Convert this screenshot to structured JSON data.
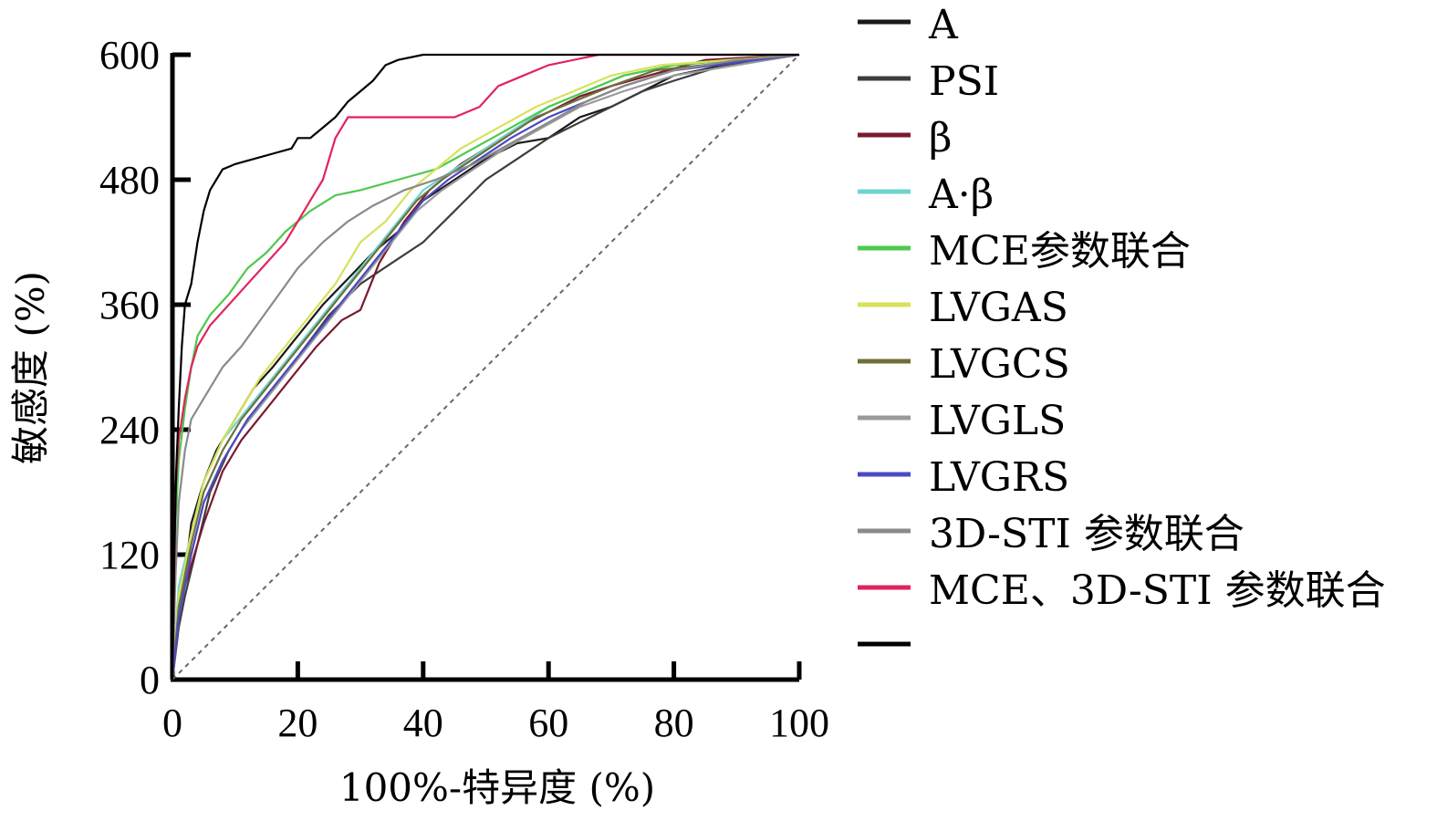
{
  "chart_data": {
    "type": "line",
    "title": "",
    "xlabel": "100%-特异度 (%)",
    "ylabel": "敏感度 (%)",
    "xlim": [
      0,
      100
    ],
    "ylim": [
      0,
      600
    ],
    "x_ticks": [
      0,
      20,
      40,
      60,
      80,
      100
    ],
    "y_ticks": [
      0,
      120,
      240,
      360,
      480,
      600
    ],
    "grid": false,
    "legend_position": "right",
    "reference_line": {
      "from": [
        0,
        0
      ],
      "to": [
        100,
        600
      ],
      "style": "dashed",
      "color": "#666666"
    },
    "series": [
      {
        "name": "A",
        "color": "#1a1a1a",
        "points": [
          [
            0,
            0
          ],
          [
            1,
            60
          ],
          [
            2,
            100
          ],
          [
            3,
            150
          ],
          [
            5,
            190
          ],
          [
            7,
            220
          ],
          [
            10,
            250
          ],
          [
            13,
            280
          ],
          [
            16,
            300
          ],
          [
            20,
            330
          ],
          [
            24,
            360
          ],
          [
            28,
            385
          ],
          [
            32,
            410
          ],
          [
            36,
            430
          ],
          [
            40,
            460
          ],
          [
            45,
            480
          ],
          [
            50,
            500
          ],
          [
            55,
            515
          ],
          [
            60,
            520
          ],
          [
            65,
            540
          ],
          [
            70,
            550
          ],
          [
            75,
            565
          ],
          [
            80,
            580
          ],
          [
            88,
            590
          ],
          [
            100,
            600
          ]
        ]
      },
      {
        "name": "PSI",
        "color": "#3d3d3d",
        "points": [
          [
            0,
            0
          ],
          [
            1,
            50
          ],
          [
            2,
            80
          ],
          [
            4,
            130
          ],
          [
            6,
            180
          ],
          [
            9,
            220
          ],
          [
            12,
            250
          ],
          [
            16,
            280
          ],
          [
            20,
            310
          ],
          [
            25,
            350
          ],
          [
            30,
            380
          ],
          [
            35,
            400
          ],
          [
            40,
            420
          ],
          [
            45,
            450
          ],
          [
            50,
            480
          ],
          [
            55,
            500
          ],
          [
            60,
            520
          ],
          [
            65,
            535
          ],
          [
            70,
            550
          ],
          [
            75,
            565
          ],
          [
            80,
            575
          ],
          [
            88,
            590
          ],
          [
            100,
            600
          ]
        ]
      },
      {
        "name": "β",
        "color": "#7a1a2e",
        "points": [
          [
            0,
            0
          ],
          [
            1,
            70
          ],
          [
            3,
            110
          ],
          [
            5,
            150
          ],
          [
            8,
            200
          ],
          [
            11,
            230
          ],
          [
            15,
            260
          ],
          [
            19,
            290
          ],
          [
            23,
            320
          ],
          [
            27,
            345
          ],
          [
            30,
            355
          ],
          [
            33,
            400
          ],
          [
            37,
            440
          ],
          [
            41,
            470
          ],
          [
            46,
            495
          ],
          [
            50,
            510
          ],
          [
            55,
            530
          ],
          [
            60,
            545
          ],
          [
            65,
            560
          ],
          [
            70,
            570
          ],
          [
            76,
            580
          ],
          [
            85,
            595
          ],
          [
            100,
            600
          ]
        ]
      },
      {
        "name": "A·β",
        "color": "#6fd4d0",
        "points": [
          [
            0,
            0
          ],
          [
            1,
            90
          ],
          [
            3,
            140
          ],
          [
            5,
            190
          ],
          [
            8,
            230
          ],
          [
            12,
            260
          ],
          [
            16,
            290
          ],
          [
            20,
            320
          ],
          [
            24,
            350
          ],
          [
            28,
            380
          ],
          [
            32,
            410
          ],
          [
            36,
            440
          ],
          [
            40,
            470
          ],
          [
            45,
            490
          ],
          [
            50,
            510
          ],
          [
            55,
            530
          ],
          [
            60,
            550
          ],
          [
            66,
            565
          ],
          [
            72,
            580
          ],
          [
            80,
            590
          ],
          [
            100,
            600
          ]
        ]
      },
      {
        "name": "MCE参数联合",
        "color": "#4ec94e",
        "points": [
          [
            0,
            0
          ],
          [
            0.5,
            150
          ],
          [
            1,
            210
          ],
          [
            2,
            260
          ],
          [
            3,
            300
          ],
          [
            4,
            330
          ],
          [
            6,
            350
          ],
          [
            9,
            370
          ],
          [
            12,
            395
          ],
          [
            15,
            410
          ],
          [
            18,
            430
          ],
          [
            22,
            450
          ],
          [
            26,
            465
          ],
          [
            30,
            470
          ],
          [
            36,
            480
          ],
          [
            42,
            490
          ],
          [
            48,
            510
          ],
          [
            54,
            530
          ],
          [
            60,
            550
          ],
          [
            66,
            565
          ],
          [
            72,
            580
          ],
          [
            80,
            590
          ],
          [
            100,
            600
          ]
        ]
      },
      {
        "name": "LVGAS",
        "color": "#d7e25a",
        "points": [
          [
            0,
            0
          ],
          [
            1,
            80
          ],
          [
            3,
            140
          ],
          [
            5,
            190
          ],
          [
            8,
            230
          ],
          [
            11,
            260
          ],
          [
            14,
            290
          ],
          [
            18,
            320
          ],
          [
            22,
            350
          ],
          [
            26,
            380
          ],
          [
            30,
            420
          ],
          [
            34,
            440
          ],
          [
            38,
            470
          ],
          [
            42,
            490
          ],
          [
            46,
            510
          ],
          [
            52,
            530
          ],
          [
            58,
            550
          ],
          [
            64,
            565
          ],
          [
            70,
            580
          ],
          [
            78,
            590
          ],
          [
            100,
            600
          ]
        ]
      },
      {
        "name": "LVGCS",
        "color": "#6f6f3a",
        "points": [
          [
            0,
            0
          ],
          [
            1,
            70
          ],
          [
            3,
            130
          ],
          [
            5,
            180
          ],
          [
            8,
            220
          ],
          [
            11,
            250
          ],
          [
            15,
            280
          ],
          [
            19,
            310
          ],
          [
            23,
            340
          ],
          [
            27,
            370
          ],
          [
            31,
            400
          ],
          [
            35,
            430
          ],
          [
            39,
            460
          ],
          [
            43,
            480
          ],
          [
            48,
            500
          ],
          [
            53,
            520
          ],
          [
            58,
            540
          ],
          [
            64,
            555
          ],
          [
            70,
            570
          ],
          [
            77,
            585
          ],
          [
            100,
            600
          ]
        ]
      },
      {
        "name": "LVGLS",
        "color": "#9a9a9a",
        "points": [
          [
            0,
            0
          ],
          [
            1,
            60
          ],
          [
            3,
            120
          ],
          [
            5,
            170
          ],
          [
            8,
            210
          ],
          [
            11,
            240
          ],
          [
            15,
            270
          ],
          [
            19,
            300
          ],
          [
            23,
            330
          ],
          [
            27,
            360
          ],
          [
            31,
            390
          ],
          [
            35,
            420
          ],
          [
            39,
            450
          ],
          [
            43,
            470
          ],
          [
            48,
            490
          ],
          [
            53,
            510
          ],
          [
            59,
            530
          ],
          [
            65,
            550
          ],
          [
            72,
            565
          ],
          [
            80,
            580
          ],
          [
            90,
            590
          ],
          [
            100,
            600
          ]
        ]
      },
      {
        "name": "LVGRS",
        "color": "#4a4ac4",
        "points": [
          [
            0,
            0
          ],
          [
            1,
            60
          ],
          [
            3,
            120
          ],
          [
            5,
            170
          ],
          [
            8,
            210
          ],
          [
            12,
            250
          ],
          [
            16,
            280
          ],
          [
            20,
            310
          ],
          [
            24,
            340
          ],
          [
            28,
            370
          ],
          [
            32,
            400
          ],
          [
            36,
            430
          ],
          [
            40,
            460
          ],
          [
            44,
            480
          ],
          [
            49,
            500
          ],
          [
            54,
            520
          ],
          [
            60,
            540
          ],
          [
            66,
            555
          ],
          [
            72,
            570
          ],
          [
            80,
            585
          ],
          [
            100,
            600
          ]
        ]
      },
      {
        "name": "3D-STI 参数联合",
        "color": "#8a8a8a",
        "points": [
          [
            0,
            0
          ],
          [
            0.5,
            100
          ],
          [
            1,
            170
          ],
          [
            2,
            220
          ],
          [
            3,
            250
          ],
          [
            5,
            270
          ],
          [
            8,
            300
          ],
          [
            11,
            320
          ],
          [
            14,
            345
          ],
          [
            17,
            370
          ],
          [
            20,
            395
          ],
          [
            24,
            420
          ],
          [
            28,
            440
          ],
          [
            32,
            455
          ],
          [
            37,
            470
          ],
          [
            42,
            480
          ],
          [
            48,
            495
          ],
          [
            54,
            515
          ],
          [
            60,
            535
          ],
          [
            66,
            555
          ],
          [
            72,
            570
          ],
          [
            80,
            585
          ],
          [
            90,
            595
          ],
          [
            100,
            600
          ]
        ]
      },
      {
        "name": "MCE、3D-STI 参数联合",
        "color": "#e0245e",
        "points": [
          [
            0,
            0
          ],
          [
            0.5,
            180
          ],
          [
            1,
            230
          ],
          [
            2,
            270
          ],
          [
            3,
            300
          ],
          [
            4,
            320
          ],
          [
            6,
            340
          ],
          [
            9,
            360
          ],
          [
            12,
            380
          ],
          [
            15,
            400
          ],
          [
            18,
            420
          ],
          [
            20,
            440
          ],
          [
            22,
            460
          ],
          [
            24,
            480
          ],
          [
            26,
            520
          ],
          [
            28,
            540
          ],
          [
            33,
            540
          ],
          [
            40,
            540
          ],
          [
            45,
            540
          ],
          [
            49,
            550
          ],
          [
            52,
            570
          ],
          [
            56,
            580
          ],
          [
            60,
            590
          ],
          [
            68,
            600
          ],
          [
            100,
            600
          ]
        ]
      },
      {
        "name": "",
        "color": "#000000",
        "points": [
          [
            0,
            0
          ],
          [
            0.3,
            120
          ],
          [
            0.6,
            200
          ],
          [
            1,
            260
          ],
          [
            1.5,
            320
          ],
          [
            2,
            360
          ],
          [
            3,
            380
          ],
          [
            4,
            420
          ],
          [
            5,
            450
          ],
          [
            6,
            470
          ],
          [
            7,
            480
          ],
          [
            8,
            490
          ],
          [
            10,
            495
          ],
          [
            13,
            500
          ],
          [
            16,
            505
          ],
          [
            19,
            510
          ],
          [
            20,
            520
          ],
          [
            22,
            520
          ],
          [
            24,
            530
          ],
          [
            26,
            540
          ],
          [
            28,
            555
          ],
          [
            30,
            565
          ],
          [
            32,
            575
          ],
          [
            34,
            590
          ],
          [
            36,
            595
          ],
          [
            40,
            600
          ],
          [
            100,
            600
          ]
        ]
      }
    ]
  }
}
